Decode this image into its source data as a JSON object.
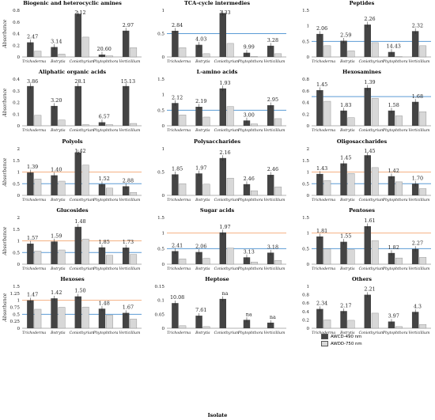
{
  "categories": [
    "Trichoderma",
    "Botrytis",
    "Coniothyrium",
    "Phytophthora",
    "Verticillium"
  ],
  "x_axis_label": "Isolate",
  "y_axis_label": "Absorbance",
  "legend": {
    "awd490": "AWCD-490 nm",
    "awdd750": "AWDD-750 nm",
    "awd490_color": "#444444",
    "awdd750_color": "#d8d8d8"
  },
  "reference_line_colors": {
    "blue": "#5b9bd5",
    "orange": "#f4b183"
  },
  "chart_data": [
    {
      "type": "bar",
      "title": "Biogenic and heterocyclic amines",
      "ylim": [
        0,
        0.8
      ],
      "ticks": [
        0,
        0.2,
        0.4,
        0.6,
        0.8
      ],
      "series": [
        {
          "name": "AWCD-490 nm",
          "values": [
            0.25,
            0.17,
            0.74,
            0.04,
            0.45
          ]
        },
        {
          "name": "AWDD-750 nm",
          "values": [
            0.1,
            0.05,
            0.34,
            0.02,
            0.16
          ]
        }
      ],
      "ratio_labels": [
        "2.47",
        "3.14",
        "2.12",
        "20.60",
        "2.97"
      ],
      "ref_lines": []
    },
    {
      "type": "bar",
      "title": "TCA-cycle intermedies",
      "ylim": [
        0,
        1
      ],
      "ticks": [
        0,
        0.5,
        1
      ],
      "series": [
        {
          "name": "AWCD-490 nm",
          "values": [
            0.56,
            0.26,
            0.94,
            0.09,
            0.24
          ]
        },
        {
          "name": "AWDD-750 nm",
          "values": [
            0.2,
            0.07,
            0.29,
            0.01,
            0.07
          ]
        }
      ],
      "ratio_labels": [
        "2.84",
        "4.03",
        "3.33",
        "9.99",
        "3.28"
      ],
      "ref_lines": [
        {
          "color": "blue",
          "y": 0.5
        }
      ]
    },
    {
      "type": "bar",
      "title": "Peptides",
      "ylim": [
        0,
        1.5
      ],
      "ticks": [
        0,
        0.5,
        1,
        1.5
      ],
      "series": [
        {
          "name": "AWCD-490 nm",
          "values": [
            0.74,
            0.52,
            1.04,
            0.16,
            0.83
          ]
        },
        {
          "name": "AWDD-750 nm",
          "values": [
            0.36,
            0.2,
            0.46,
            0.01,
            0.36
          ]
        }
      ],
      "ratio_labels": [
        "2.06",
        "2.59",
        "2.26",
        "14.43",
        "2.32"
      ],
      "ref_lines": [
        {
          "color": "blue",
          "y": 0.5
        }
      ]
    },
    {
      "type": "bar",
      "title": "Aliphatic organic acids",
      "ylim": [
        0,
        0.4
      ],
      "ticks": [
        0,
        0.1,
        0.2,
        0.3,
        0.4
      ],
      "series": [
        {
          "name": "AWCD-490 nm",
          "values": [
            0.34,
            0.17,
            0.34,
            0.03,
            0.34
          ]
        },
        {
          "name": "AWDD-750 nm",
          "values": [
            0.09,
            0.05,
            0.01,
            0.01,
            0.02
          ]
        }
      ],
      "ratio_labels": [
        "3.86",
        "3.20",
        "28.1",
        "6.57",
        "15.13"
      ],
      "ref_lines": []
    },
    {
      "type": "bar",
      "title": "L-amino acids",
      "ylim": [
        0,
        1.5
      ],
      "ticks": [
        0,
        0.5,
        1,
        1.5
      ],
      "series": [
        {
          "name": "AWCD-490 nm",
          "values": [
            0.73,
            0.61,
            1.2,
            0.17,
            0.66
          ]
        },
        {
          "name": "AWDD-750 nm",
          "values": [
            0.35,
            0.28,
            0.62,
            0.06,
            0.23
          ]
        }
      ],
      "ratio_labels": [
        "2.12",
        "2.19",
        "1.93",
        "3.00",
        "2.95"
      ],
      "ref_lines": [
        {
          "color": "blue",
          "y": 0.5
        }
      ]
    },
    {
      "type": "bar",
      "title": "Hexosamines",
      "ylim": [
        0,
        0.8
      ],
      "ticks": [
        0,
        0.2,
        0.4,
        0.6,
        0.8
      ],
      "series": [
        {
          "name": "AWCD-490 nm",
          "values": [
            0.61,
            0.26,
            0.65,
            0.26,
            0.41
          ]
        },
        {
          "name": "AWDD-750 nm",
          "values": [
            0.42,
            0.14,
            0.47,
            0.17,
            0.24
          ]
        }
      ],
      "ratio_labels": [
        "1.45",
        "1.83",
        "1.39",
        "1.58",
        "1.68"
      ],
      "ref_lines": [
        {
          "color": "blue",
          "y": 0.5
        }
      ]
    },
    {
      "type": "bar",
      "title": "Polyols",
      "ylim": [
        0,
        2
      ],
      "ticks": [
        0,
        0.5,
        1,
        1.5,
        2
      ],
      "series": [
        {
          "name": "AWCD-490 nm",
          "values": [
            0.98,
            0.86,
            1.84,
            0.48,
            0.39
          ]
        },
        {
          "name": "AWDD-750 nm",
          "values": [
            0.7,
            0.61,
            1.3,
            0.31,
            0.13
          ]
        }
      ],
      "ratio_labels": [
        "1.39",
        "1.40",
        "1.42",
        "1.52",
        "2.88"
      ],
      "ref_lines": [
        {
          "color": "orange",
          "y": 1.0
        },
        {
          "color": "blue",
          "y": 0.5
        }
      ]
    },
    {
      "type": "bar",
      "title": "Polysaccharides",
      "ylim": [
        0,
        1
      ],
      "ticks": [
        0,
        0.5,
        1
      ],
      "series": [
        {
          "name": "AWCD-490 nm",
          "values": [
            0.45,
            0.47,
            0.8,
            0.24,
            0.44
          ]
        },
        {
          "name": "AWDD-750 nm",
          "values": [
            0.25,
            0.24,
            0.37,
            0.1,
            0.18
          ]
        }
      ],
      "ratio_labels": [
        "1.85",
        "1.97",
        "2.16",
        "2.46",
        "2.46"
      ],
      "ref_lines": []
    },
    {
      "type": "bar",
      "title": "Oligosaccharides",
      "ylim": [
        0,
        2
      ],
      "ticks": [
        0,
        0.5,
        1,
        1.5,
        2
      ],
      "series": [
        {
          "name": "AWCD-490 nm",
          "values": [
            0.92,
            1.37,
            1.72,
            0.82,
            0.5
          ]
        },
        {
          "name": "AWDD-750 nm",
          "values": [
            0.64,
            0.94,
            1.19,
            0.58,
            0.29
          ]
        }
      ],
      "ratio_labels": [
        "1.43",
        "1.45",
        "1.45",
        "1.42",
        "1.70"
      ],
      "ref_lines": [
        {
          "color": "orange",
          "y": 1.0
        },
        {
          "color": "blue",
          "y": 0.5
        }
      ]
    },
    {
      "type": "bar",
      "title": "Glucosides",
      "ylim": [
        0,
        2
      ],
      "ticks": [
        0,
        0.5,
        1,
        1.5,
        2
      ],
      "series": [
        {
          "name": "AWCD-490 nm",
          "values": [
            0.88,
            0.97,
            1.6,
            0.72,
            0.71
          ]
        },
        {
          "name": "AWDD-750 nm",
          "values": [
            0.56,
            0.61,
            1.08,
            0.38,
            0.42
          ]
        }
      ],
      "ratio_labels": [
        "1.57",
        "1.59",
        "1.48",
        "1.85",
        "1.73"
      ],
      "ref_lines": [
        {
          "color": "orange",
          "y": 1.0
        },
        {
          "color": "blue",
          "y": 0.5
        }
      ]
    },
    {
      "type": "bar",
      "title": "Sugar acids",
      "ylim": [
        0,
        1.5
      ],
      "ticks": [
        0,
        0.5,
        1,
        1.5
      ],
      "series": [
        {
          "name": "AWCD-490 nm",
          "values": [
            0.42,
            0.39,
            1.02,
            0.22,
            0.37
          ]
        },
        {
          "name": "AWDD-750 nm",
          "values": [
            0.17,
            0.19,
            0.52,
            0.07,
            0.12
          ]
        }
      ],
      "ratio_labels": [
        "2.41",
        "2.06",
        "1.97",
        "3.13",
        "3.18"
      ],
      "ref_lines": [
        {
          "color": "orange",
          "y": 1.0
        },
        {
          "color": "blue",
          "y": 0.5
        }
      ]
    },
    {
      "type": "bar",
      "title": "Pentoses",
      "ylim": [
        0,
        1.5
      ],
      "ticks": [
        0,
        0.5,
        1,
        1.5
      ],
      "series": [
        {
          "name": "AWCD-490 nm",
          "values": [
            0.89,
            0.72,
            1.22,
            0.36,
            0.49
          ]
        },
        {
          "name": "AWDD-750 nm",
          "values": [
            0.49,
            0.47,
            0.76,
            0.2,
            0.22
          ]
        }
      ],
      "ratio_labels": [
        "1.81",
        "1.55",
        "1.61",
        "1.82",
        "2.27"
      ],
      "ref_lines": [
        {
          "color": "orange",
          "y": 1.0
        },
        {
          "color": "blue",
          "y": 0.5
        }
      ]
    },
    {
      "type": "bar",
      "title": "Hexoses",
      "ylim": [
        0,
        1.5
      ],
      "ticks": [
        0,
        0.25,
        0.5,
        0.75,
        1,
        1.25,
        1.5
      ],
      "series": [
        {
          "name": "AWCD-490 nm",
          "values": [
            1.0,
            1.07,
            1.14,
            0.7,
            0.55
          ]
        },
        {
          "name": "AWDD-750 nm",
          "values": [
            0.68,
            0.75,
            0.76,
            0.47,
            0.33
          ]
        }
      ],
      "ratio_labels": [
        "1.47",
        "1.42",
        "1.50",
        "1.48",
        "1.67"
      ],
      "ref_lines": [
        {
          "color": "orange",
          "y": 1.0
        },
        {
          "color": "blue",
          "y": 0.5
        }
      ]
    },
    {
      "type": "bar",
      "title": "Heptose",
      "ylim": [
        0,
        0.15
      ],
      "ticks": [
        0,
        0.05,
        0.1,
        0.15
      ],
      "series": [
        {
          "name": "AWCD-490 nm",
          "values": [
            0.09,
            0.045,
            0.105,
            0.03,
            0.02
          ]
        },
        {
          "name": "AWDD-750 nm",
          "values": [
            0.009,
            0.006,
            0.0,
            0.0,
            0.0
          ]
        }
      ],
      "ratio_labels": [
        "10.08",
        "7.61",
        "na",
        "na",
        "na"
      ],
      "ref_lines": []
    },
    {
      "type": "bar",
      "title": "Others",
      "ylim": [
        0,
        1
      ],
      "ticks": [
        0,
        0.2,
        0.4,
        0.6,
        0.8,
        1
      ],
      "series": [
        {
          "name": "AWCD-490 nm",
          "values": [
            0.46,
            0.41,
            0.8,
            0.16,
            0.39
          ]
        },
        {
          "name": "AWDD-750 nm",
          "values": [
            0.2,
            0.19,
            0.36,
            0.04,
            0.09
          ]
        }
      ],
      "ratio_labels": [
        "2.34",
        "2.17",
        "2.21",
        "3.97",
        "4.3"
      ],
      "ref_lines": []
    }
  ]
}
